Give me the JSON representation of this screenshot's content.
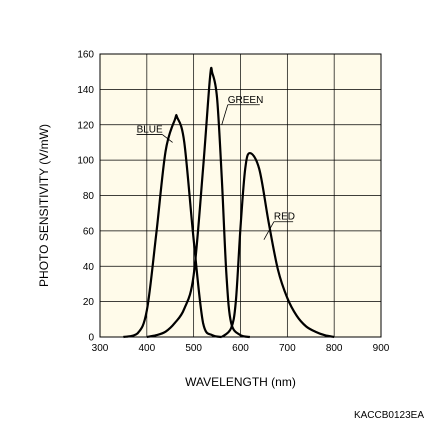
{
  "chart_data": {
    "type": "line",
    "title": "",
    "xlabel": "WAVELENGTH (nm)",
    "ylabel": "PHOTO SENSITIVITY (V/mW)",
    "xlim": [
      300,
      900
    ],
    "ylim": [
      0,
      160
    ],
    "xticks": [
      300,
      400,
      500,
      600,
      700,
      800,
      900
    ],
    "yticks": [
      0,
      20,
      40,
      60,
      80,
      100,
      120,
      140,
      160
    ],
    "grid": true,
    "legend": "none",
    "background": "#fffbea",
    "series": [
      {
        "name": "BLUE",
        "color": "#000000",
        "x": [
          350,
          380,
          400,
          420,
          440,
          460,
          465,
          480,
          500,
          520,
          540,
          560
        ],
        "y": [
          0,
          2,
          15,
          58,
          105,
          123,
          124,
          110,
          55,
          8,
          1,
          0
        ],
        "label_anchor": [
          455,
          110
        ]
      },
      {
        "name": "GREEN",
        "color": "#000000",
        "x": [
          400,
          420,
          440,
          460,
          480,
          500,
          520,
          535,
          540,
          550,
          560,
          570,
          580,
          600,
          620
        ],
        "y": [
          0,
          1,
          3,
          8,
          16,
          35,
          95,
          147,
          149,
          135,
          90,
          35,
          8,
          1,
          0
        ],
        "label_anchor": [
          560,
          120
        ]
      },
      {
        "name": "RED",
        "color": "#000000",
        "x": [
          560,
          580,
          590,
          600,
          610,
          620,
          640,
          660,
          680,
          700,
          720,
          740,
          760,
          780,
          800
        ],
        "y": [
          0,
          5,
          20,
          62,
          95,
          104,
          95,
          65,
          38,
          22,
          12,
          6,
          3,
          1,
          0
        ],
        "label_anchor": [
          650,
          55
        ]
      }
    ],
    "footer_code": "KACCB0123EA"
  }
}
